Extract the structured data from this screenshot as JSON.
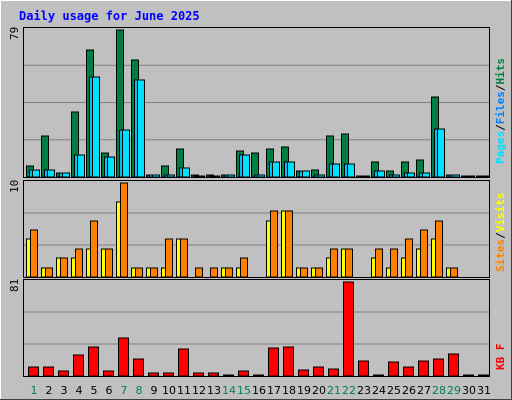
{
  "colors": {
    "background": "#c0c0c0",
    "title_text": "#0000ff",
    "hits": "#008040",
    "files": "#00c0ff",
    "pages": "#00e0ff",
    "sites": "#ff8000",
    "visits": "#ffff00",
    "kbytes": "#ff0000",
    "weekend_day_label": "#00805c",
    "weekday_label": "#000000",
    "grid": "#808080"
  },
  "chart_data": [
    {
      "type": "bar",
      "title": "Daily usage for June 2025",
      "categories": [
        "1",
        "2",
        "3",
        "4",
        "5",
        "6",
        "7",
        "8",
        "9",
        "10",
        "11",
        "12",
        "13",
        "14",
        "15",
        "16",
        "17",
        "18",
        "19",
        "20",
        "21",
        "22",
        "23",
        "24",
        "25",
        "26",
        "27",
        "28",
        "29",
        "30",
        "31"
      ],
      "weekend_days": [
        "1",
        "7",
        "8",
        "14",
        "15",
        "21",
        "22",
        "28",
        "29"
      ],
      "ylabel_parts": [
        "Pages",
        "Files",
        "Hits"
      ],
      "ymax_label": "79",
      "ylim": [
        0,
        79
      ],
      "series": [
        {
          "name": "Hits",
          "values": [
            6,
            22,
            2,
            35,
            68,
            13,
            79,
            63,
            1,
            6,
            15,
            1,
            1,
            1,
            14,
            13,
            15,
            16,
            3,
            4,
            22,
            23,
            0,
            8,
            3,
            8,
            9,
            43,
            1,
            0,
            0
          ]
        },
        {
          "name": "Files",
          "values": [
            4,
            4,
            2,
            12,
            54,
            11,
            25,
            52,
            1,
            1,
            5,
            0,
            0,
            1,
            12,
            1,
            8,
            8,
            3,
            1,
            7,
            7,
            0,
            3,
            1,
            2,
            2,
            26,
            1,
            0,
            0
          ]
        },
        {
          "name": "Pages",
          "values": [
            4,
            4,
            2,
            12,
            54,
            11,
            25,
            52,
            1,
            1,
            5,
            0,
            0,
            1,
            12,
            1,
            8,
            8,
            3,
            1,
            7,
            7,
            0,
            3,
            1,
            2,
            2,
            26,
            1,
            0,
            0
          ]
        }
      ]
    },
    {
      "type": "bar",
      "categories": [
        "1",
        "2",
        "3",
        "4",
        "5",
        "6",
        "7",
        "8",
        "9",
        "10",
        "11",
        "12",
        "13",
        "14",
        "15",
        "16",
        "17",
        "18",
        "19",
        "20",
        "21",
        "22",
        "23",
        "24",
        "25",
        "26",
        "27",
        "28",
        "29",
        "30",
        "31"
      ],
      "ylabel_parts": [
        "Sites",
        "Visits"
      ],
      "ymax_label": "10",
      "ylim": [
        0,
        10
      ],
      "series": [
        {
          "name": "Visits",
          "values": [
            4,
            1,
            2,
            2,
            3,
            3,
            8,
            1,
            1,
            1,
            4,
            0,
            0,
            1,
            1,
            0,
            6,
            7,
            1,
            1,
            2,
            3,
            0,
            2,
            1,
            2,
            3,
            4,
            1,
            0,
            0
          ]
        },
        {
          "name": "Sites",
          "values": [
            5,
            1,
            2,
            3,
            6,
            3,
            10,
            1,
            1,
            4,
            4,
            1,
            1,
            1,
            2,
            0,
            7,
            7,
            1,
            1,
            3,
            3,
            0,
            3,
            3,
            4,
            5,
            6,
            1,
            0,
            0
          ]
        }
      ]
    },
    {
      "type": "bar",
      "categories": [
        "1",
        "2",
        "3",
        "4",
        "5",
        "6",
        "7",
        "8",
        "9",
        "10",
        "11",
        "12",
        "13",
        "14",
        "15",
        "16",
        "17",
        "18",
        "19",
        "20",
        "21",
        "22",
        "23",
        "24",
        "25",
        "26",
        "27",
        "28",
        "29",
        "30",
        "31"
      ],
      "ylabel_parts": [
        "KB",
        "F"
      ],
      "ymax_label": "81",
      "ylim": [
        0,
        81
      ],
      "series": [
        {
          "name": "KB F",
          "values": [
            8,
            8,
            4,
            18,
            25,
            4,
            33,
            15,
            3,
            3,
            23,
            3,
            3,
            1,
            4,
            0,
            24,
            25,
            5,
            8,
            6,
            81,
            13,
            0,
            12,
            8,
            13,
            15,
            19,
            1,
            0
          ]
        }
      ]
    }
  ]
}
